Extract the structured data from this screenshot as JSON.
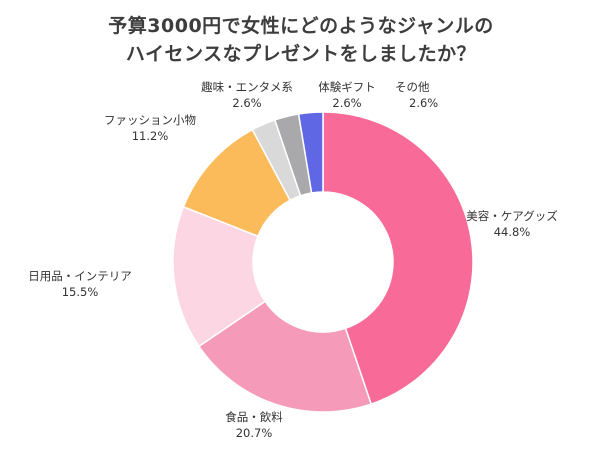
{
  "title": {
    "line1": "予算3000円で女性にどのようなジャンルの",
    "line2": "ハイセンスなプレゼントをしましたか？"
  },
  "chart_data": {
    "type": "pie",
    "donut": true,
    "categories": [
      "美容・ケアグッズ",
      "食品・飲料",
      "日用品・インテリア",
      "ファッション小物",
      "趣味・エンタメ系",
      "体験ギフト",
      "その他"
    ],
    "values": [
      44.8,
      20.7,
      15.5,
      11.2,
      2.6,
      2.6,
      2.6
    ],
    "value_labels": [
      "44.8%",
      "20.7%",
      "15.5%",
      "11.2%",
      "2.6%",
      "2.6%",
      "2.6%"
    ],
    "colors": [
      "#f86a97",
      "#f59ab8",
      "#fdd6e3",
      "#fbbb5a",
      "#d9d9d9",
      "#a9a9ab",
      "#6067e4"
    ]
  }
}
